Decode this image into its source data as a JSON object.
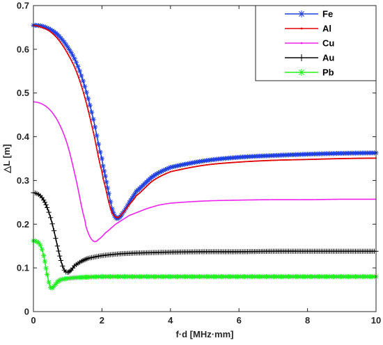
{
  "chart_data": {
    "type": "line",
    "xlabel": "f·d [MHz·mm]",
    "ylabel": "△L [m]",
    "xlim": [
      0,
      10
    ],
    "ylim": [
      0,
      0.7
    ],
    "xticks": [
      "0",
      "2",
      "4",
      "6",
      "8",
      "10"
    ],
    "yticks": [
      "0",
      "0.1",
      "0.2",
      "0.3",
      "0.4",
      "0.5",
      "0.6",
      "0.7"
    ],
    "grid": false,
    "legend_position": "top-right",
    "series": [
      {
        "name": "Fe",
        "color": "#1f3fe0",
        "marker": "asterisk",
        "x": [
          0,
          0.25,
          0.5,
          0.75,
          1.0,
          1.25,
          1.5,
          1.75,
          2.0,
          2.1,
          2.2,
          2.3,
          2.4,
          2.5,
          2.6,
          2.8,
          3.0,
          3.5,
          4.0,
          5.0,
          6.0,
          7.0,
          8.0,
          9.0,
          10.0
        ],
        "y": [
          0.655,
          0.653,
          0.645,
          0.63,
          0.605,
          0.57,
          0.515,
          0.44,
          0.35,
          0.31,
          0.27,
          0.235,
          0.215,
          0.215,
          0.225,
          0.25,
          0.275,
          0.31,
          0.33,
          0.345,
          0.353,
          0.357,
          0.36,
          0.362,
          0.363
        ]
      },
      {
        "name": "Al",
        "color": "#e00000",
        "marker": "dot",
        "x": [
          0,
          0.25,
          0.5,
          0.75,
          1.0,
          1.25,
          1.5,
          1.75,
          2.0,
          2.1,
          2.2,
          2.3,
          2.45,
          2.6,
          2.8,
          3.0,
          3.5,
          4.0,
          5.0,
          6.0,
          7.0,
          8.0,
          9.0,
          10.0
        ],
        "y": [
          0.655,
          0.65,
          0.64,
          0.62,
          0.59,
          0.55,
          0.49,
          0.41,
          0.32,
          0.285,
          0.25,
          0.225,
          0.215,
          0.225,
          0.245,
          0.265,
          0.3,
          0.32,
          0.335,
          0.342,
          0.346,
          0.348,
          0.35,
          0.351
        ]
      },
      {
        "name": "Cu",
        "color": "#ee22ee",
        "marker": "dot",
        "x": [
          0,
          0.25,
          0.5,
          0.75,
          1.0,
          1.25,
          1.5,
          1.6,
          1.7,
          1.8,
          1.9,
          2.1,
          2.4,
          2.8,
          3.5,
          4.0,
          5.0,
          6.0,
          7.0,
          8.0,
          9.0,
          10.0
        ],
        "y": [
          0.48,
          0.475,
          0.46,
          0.43,
          0.38,
          0.3,
          0.21,
          0.18,
          0.165,
          0.16,
          0.165,
          0.18,
          0.2,
          0.22,
          0.24,
          0.248,
          0.253,
          0.255,
          0.256,
          0.256,
          0.257,
          0.257
        ],
        "markers": false
      },
      {
        "name": "Au",
        "color": "#000000",
        "marker": "plus",
        "x": [
          0,
          0.1,
          0.2,
          0.3,
          0.4,
          0.5,
          0.6,
          0.7,
          0.8,
          0.9,
          1.0,
          1.1,
          1.2,
          1.4,
          1.6,
          2.0,
          2.5,
          3.0,
          4.0,
          5.0,
          6.0,
          7.0,
          8.0,
          9.0,
          10.0
        ],
        "y": [
          0.272,
          0.27,
          0.265,
          0.255,
          0.238,
          0.215,
          0.185,
          0.15,
          0.117,
          0.095,
          0.09,
          0.095,
          0.105,
          0.115,
          0.122,
          0.128,
          0.132,
          0.134,
          0.136,
          0.137,
          0.137,
          0.138,
          0.138,
          0.138,
          0.138
        ]
      },
      {
        "name": "Pb",
        "color": "#22ee22",
        "marker": "asterisk",
        "x": [
          0,
          0.1,
          0.2,
          0.3,
          0.4,
          0.5,
          0.6,
          0.7,
          0.8,
          1.0,
          1.3,
          1.6,
          2.0,
          3.0,
          4.0,
          5.0,
          6.0,
          7.0,
          8.0,
          9.0,
          10.0
        ],
        "y": [
          0.162,
          0.16,
          0.152,
          0.128,
          0.085,
          0.055,
          0.058,
          0.068,
          0.073,
          0.076,
          0.078,
          0.079,
          0.08,
          0.08,
          0.08,
          0.08,
          0.08,
          0.08,
          0.08,
          0.08,
          0.08
        ]
      }
    ]
  }
}
